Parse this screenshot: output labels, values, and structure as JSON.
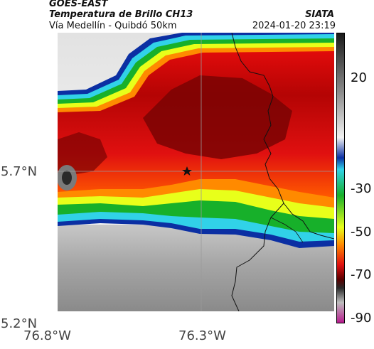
{
  "header": {
    "satellite": "GOES-EAST",
    "product": "Temperatura de Brillo CH13",
    "route": "Vía Medellín - Quibdó 50km",
    "agency": "SIATA",
    "datetime": "2024-01-20 23:19"
  },
  "map": {
    "lat_labels": [
      "5.7°N",
      "5.2°N"
    ],
    "lon_labels": [
      "76.8°W",
      "76.3°W"
    ],
    "marker_icon": "star-icon"
  },
  "colorbar": {
    "labels": [
      "20",
      "-30",
      "-50",
      "-70",
      "-90"
    ],
    "stops": [
      {
        "color": "#1a1a1a"
      },
      {
        "color": "#8a8a8a"
      },
      {
        "color": "#ffffff"
      },
      {
        "color": "#0b2fa3"
      },
      {
        "color": "#31d2e8"
      },
      {
        "color": "#17b02a"
      },
      {
        "color": "#e8ff1a"
      },
      {
        "color": "#ff8a00"
      },
      {
        "color": "#e01010"
      },
      {
        "color": "#5a0000"
      },
      {
        "color": "#b71c8e"
      }
    ]
  }
}
